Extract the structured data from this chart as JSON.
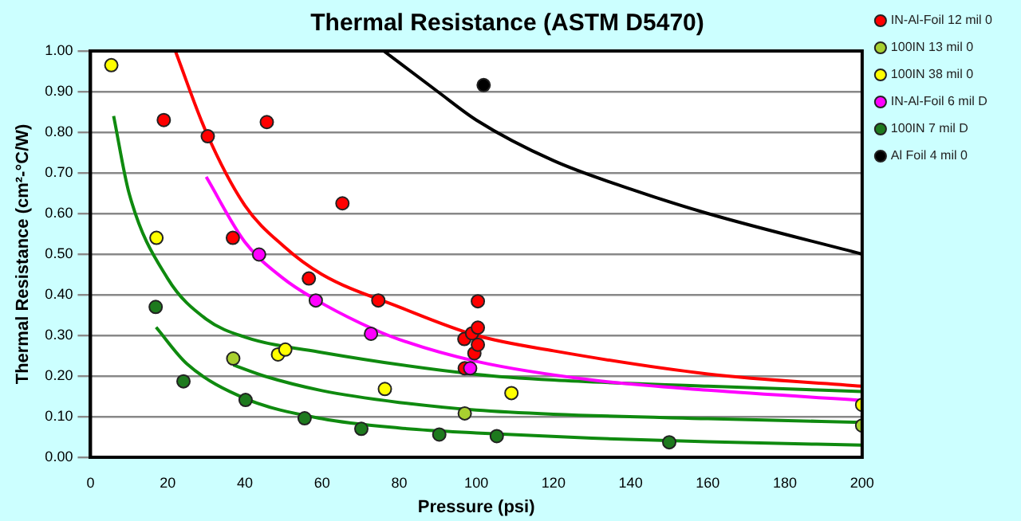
{
  "chart_data": {
    "type": "scatter",
    "title": "Thermal Resistance (ASTM D5470)",
    "xlabel": "Pressure (psi)",
    "ylabel": "Thermal Resistance (cm²-°C/W)",
    "xlim": [
      0,
      200
    ],
    "xticks": [
      0,
      20,
      40,
      60,
      80,
      100,
      120,
      140,
      160,
      180,
      200
    ],
    "ylim": [
      0,
      1
    ],
    "yticks": [
      {
        "value": 0,
        "label": "0.00"
      },
      {
        "value": 0.1,
        "label": "0.10"
      },
      {
        "value": 0.2,
        "label": "0.20"
      },
      {
        "value": 0.3,
        "label": "0.30"
      },
      {
        "value": 0.4,
        "label": "0.40"
      },
      {
        "value": 0.5,
        "label": "0.50"
      },
      {
        "value": 0.6,
        "label": "0.60"
      },
      {
        "value": 0.7,
        "label": "0.70"
      },
      {
        "value": 0.8,
        "label": "0.80"
      },
      {
        "value": 0.9,
        "label": "0.90"
      },
      {
        "value": 1,
        "label": "1.00"
      }
    ],
    "grid": "y",
    "legend": "top right",
    "marker": "circle",
    "series": [
      {
        "name": "IN-Al-Foil 12 mil 0",
        "type": "scatter",
        "color": "#ff0000",
        "x": [
          19,
          30.4,
          36.9,
          45.7,
          56.6,
          65.3,
          74.6,
          97,
          96.9,
          98.9,
          99.5,
          100.4,
          100.4,
          100.4
        ],
        "values": [
          0.83,
          0.79,
          0.54,
          0.825,
          0.44,
          0.625,
          0.386,
          0.219,
          0.291,
          0.305,
          0.256,
          0.277,
          0.319,
          0.384
        ]
      },
      {
        "name": "100IN 13 mil 0",
        "type": "scatter",
        "color": "#a8d030",
        "x": [
          37,
          97,
          200
        ],
        "values": [
          0.243,
          0.108,
          0.078
        ]
      },
      {
        "name": "100IN 38 mil 0",
        "type": "scatter",
        "color": "#ffff00",
        "x": [
          5.4,
          17.1,
          48.6,
          50.5,
          76.3,
          109.1,
          200
        ],
        "values": [
          0.965,
          0.54,
          0.253,
          0.265,
          0.168,
          0.158,
          0.129
        ]
      },
      {
        "name": "IN-Al-Foil 6 mil D",
        "type": "scatter",
        "color": "#ff00ff",
        "x": [
          43.7,
          58.4,
          72.7,
          98.4
        ],
        "values": [
          0.499,
          0.386,
          0.304,
          0.219
        ]
      },
      {
        "name": "100IN 7 mil D",
        "type": "scatter",
        "color": "#1e7a1e",
        "x": [
          16.9,
          24.1,
          40.2,
          55.5,
          70.2,
          90.4,
          105.3,
          150
        ],
        "values": [
          0.37,
          0.187,
          0.141,
          0.096,
          0.07,
          0.056,
          0.052,
          0.037
        ]
      },
      {
        "name": "Al Foil 4 mil 0",
        "type": "scatter",
        "color": "#000000",
        "x": [
          101.9
        ],
        "values": [
          0.916
        ]
      },
      {
        "type": "line",
        "color": "#ff0000",
        "marker": "none",
        "x": [
          22,
          30,
          40,
          50,
          60,
          80,
          100,
          120,
          160,
          200
        ],
        "values": [
          1.0,
          0.8,
          0.62,
          0.52,
          0.45,
          0.37,
          0.3,
          0.262,
          0.205,
          0.175
        ]
      },
      {
        "type": "line",
        "color": "#ff00ff",
        "marker": "none",
        "x": [
          30,
          40,
          50,
          58,
          70,
          80,
          100,
          130,
          160,
          200
        ],
        "values": [
          0.69,
          0.53,
          0.44,
          0.39,
          0.33,
          0.29,
          0.236,
          0.19,
          0.165,
          0.14
        ]
      },
      {
        "type": "line",
        "color": "#0f8a0f",
        "marker": "none",
        "x": [
          6,
          10,
          20,
          30,
          40,
          60,
          100,
          120,
          160,
          200
        ],
        "values": [
          0.84,
          0.65,
          0.44,
          0.34,
          0.296,
          0.258,
          0.204,
          0.19,
          0.175,
          0.162
        ]
      },
      {
        "type": "line",
        "color": "#0f8a0f",
        "marker": "none",
        "x": [
          37,
          45,
          60,
          80,
          100,
          120,
          160,
          200
        ],
        "values": [
          0.227,
          0.2,
          0.164,
          0.135,
          0.116,
          0.106,
          0.095,
          0.086
        ]
      },
      {
        "type": "line",
        "color": "#0f8a0f",
        "marker": "none",
        "x": [
          17,
          25,
          40,
          60,
          80,
          100,
          130,
          160,
          200
        ],
        "values": [
          0.32,
          0.23,
          0.145,
          0.095,
          0.072,
          0.06,
          0.047,
          0.038,
          0.03
        ]
      },
      {
        "type": "line",
        "color": "#000000",
        "marker": "none",
        "x": [
          76,
          90,
          100,
          120,
          140,
          160,
          200
        ],
        "values": [
          1.0,
          0.9,
          0.83,
          0.73,
          0.66,
          0.6,
          0.5
        ]
      }
    ]
  }
}
